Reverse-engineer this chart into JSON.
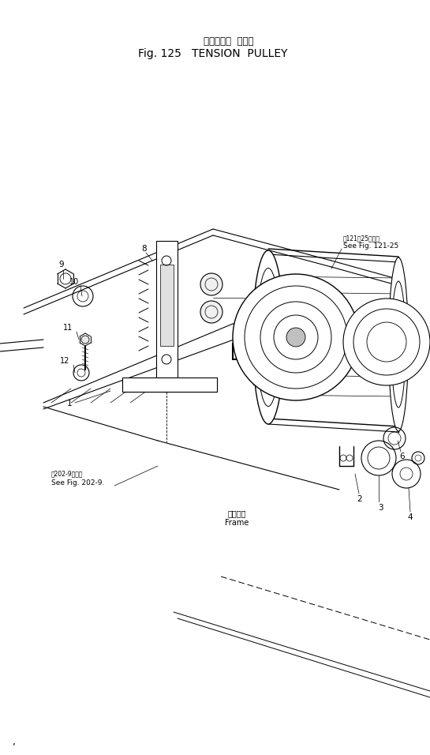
{
  "title_japanese": "テンション  プーリ",
  "title_english": "Fig. 125   TENSION  PULLEY",
  "bg_color": "#ffffff",
  "line_color": "#000000",
  "ref1_japanese": "第121図25図参照",
  "ref1_english": "See Fig. 121-25",
  "ref2_japanese": "第202-9図参照",
  "ref2_english": "See Fig. 202-9.",
  "frame_japanese": "フレーム",
  "frame_english": "Frame"
}
